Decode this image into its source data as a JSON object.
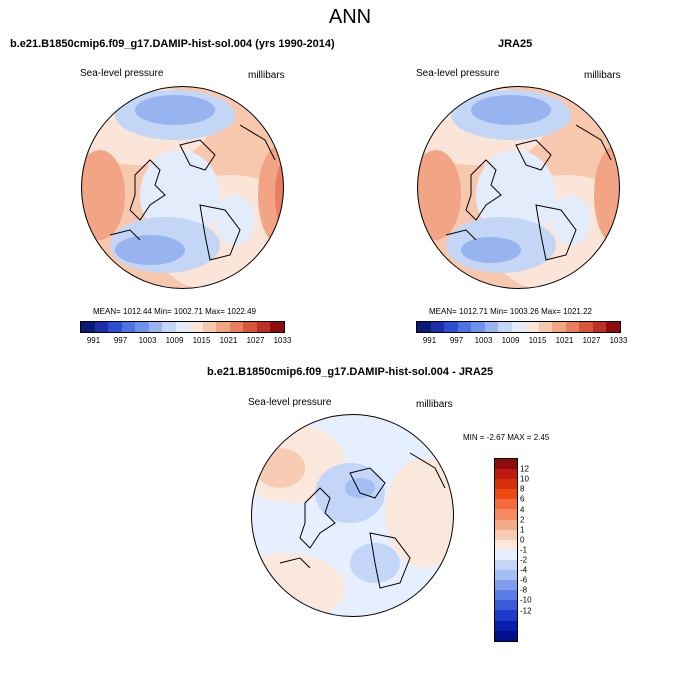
{
  "title": "ANN",
  "panels": [
    {
      "title": "b.e21.B1850cmip6.f09_g17.DAMIP-hist-sol.004 (yrs 1990-2014)",
      "left_label": "Sea-level pressure",
      "right_label": "millibars",
      "stats": "MEAN= 1012.44  Min= 1002.71  Max= 1022.49",
      "mean": 1012.44,
      "min": 1002.71,
      "max": 1022.49
    },
    {
      "title": "JRA25",
      "left_label": "Sea-level pressure",
      "right_label": "millibars",
      "stats": "MEAN= 1012.71  Min= 1003.26  Max= 1021.22",
      "mean": 1012.71,
      "min": 1003.26,
      "max": 1021.22
    },
    {
      "title": "b.e21.B1850cmip6.f09_g17.DAMIP-hist-sol.004 - JRA25",
      "left_label": "Sea-level pressure",
      "right_label": "millibars",
      "stats": "MIN =  -2.67 MAX =   2.45",
      "min": -2.67,
      "max": 2.45
    }
  ],
  "colorbar_abs": {
    "colors": [
      "#0a1a7a",
      "#1b2fa8",
      "#2a4fd0",
      "#4a73e4",
      "#6d93ec",
      "#98b4f0",
      "#c3d6f5",
      "#e3ecfa",
      "#fbe5d8",
      "#f7c8ae",
      "#f1a585",
      "#e77f60",
      "#d8553b",
      "#bd2f1f",
      "#8d0c0c"
    ],
    "ticks": [
      "991",
      "997",
      "1003",
      "1009",
      "1015",
      "1021",
      "1027",
      "1033"
    ]
  },
  "colorbar_diff": {
    "colors": [
      "#8d0c0c",
      "#bd1b10",
      "#d8300a",
      "#ee4a10",
      "#f26a3a",
      "#f58a60",
      "#f6ab88",
      "#f8ccb4",
      "#fbe8dc",
      "#e6efff",
      "#c4d6f8",
      "#a4bdf2",
      "#7e9eec",
      "#5a7de4",
      "#3a5ad8",
      "#1f39c8",
      "#0a1fb0",
      "#00108a"
    ],
    "ticks": [
      "12",
      "10",
      "8",
      "6",
      "4",
      "2",
      "1",
      "0",
      "-1",
      "-2",
      "-4",
      "-6",
      "-8",
      "-10",
      "-12"
    ]
  }
}
